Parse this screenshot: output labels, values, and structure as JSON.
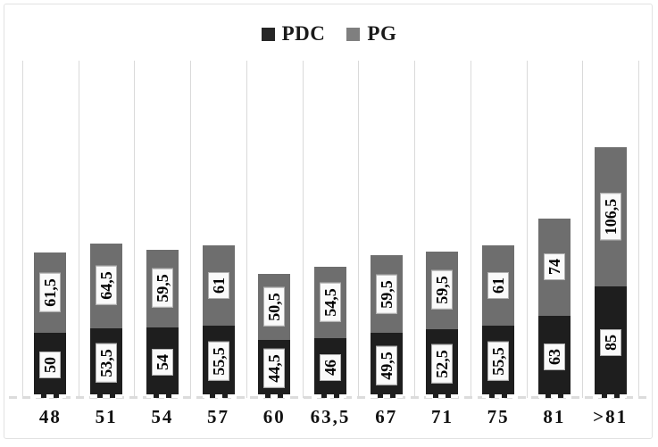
{
  "chart_data": {
    "type": "bar",
    "stacked": true,
    "title": "",
    "xlabel": "",
    "ylabel": "",
    "legend_position": "top",
    "grid": "vertical-category-separators",
    "ylim": [
      0,
      258
    ],
    "decimal_separator": ",",
    "value_label_style": "rotated-90-white-box",
    "categories": [
      "48",
      "51",
      "54",
      "57",
      "60",
      "63,5",
      "67",
      "71",
      "75",
      "81",
      ">81"
    ],
    "series": [
      {
        "name": "PDC",
        "color": "#1e1e1e",
        "values": [
          50,
          53.5,
          54,
          55.5,
          44.5,
          46,
          49.5,
          52.5,
          55.5,
          63,
          85
        ],
        "labels": [
          "50",
          "53,5",
          "54",
          "55,5",
          "44,5",
          "46",
          "49,5",
          "52,5",
          "55,5",
          "63",
          "85"
        ]
      },
      {
        "name": "PG",
        "color": "#6e6e6e",
        "values": [
          61.5,
          64.5,
          59.5,
          61,
          50.5,
          54.5,
          59.5,
          59.5,
          61,
          74,
          106.5
        ],
        "labels": [
          "61,5",
          "64,5",
          "59,5",
          "61",
          "50,5",
          "54,5",
          "59,5",
          "59,5",
          "61",
          "74",
          "106,5"
        ]
      }
    ]
  },
  "legend": {
    "items": [
      {
        "label": "PDC",
        "color": "#262626"
      },
      {
        "label": "PG",
        "color": "#7f7f7f"
      }
    ]
  },
  "figure": {
    "background": "#ffffff",
    "border_color": "#e2e2e2",
    "gridline_color": "#dadada",
    "baseline_dash_color": "#dcdcdc",
    "bar_bottom_dash_color": "#ffffff",
    "label_box_background": "#fafafa",
    "label_box_border": "#b0b0b0"
  }
}
